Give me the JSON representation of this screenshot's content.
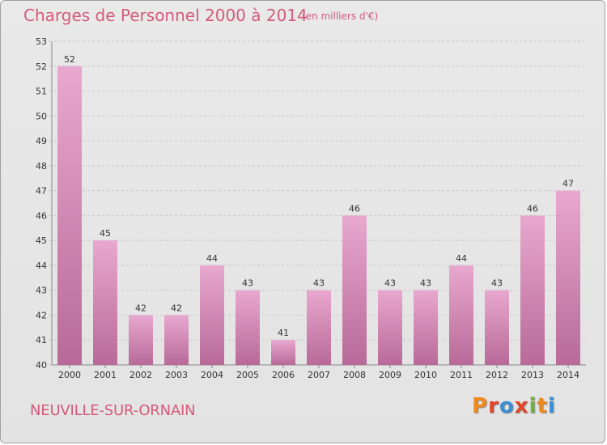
{
  "header": {
    "title": "Charges de Personnel 2000 à 2014",
    "unit": "(en milliers d'€)"
  },
  "footer": {
    "commune": "NEUVILLE-SUR-ORNAIN",
    "logo_letters": [
      "P",
      "r",
      "o",
      "x",
      "i",
      "t",
      "i"
    ],
    "logo_colors": [
      "#f08a1e",
      "#e2462b",
      "#3b8fd8",
      "#e2462b",
      "#6cb33f",
      "#f08a1e",
      "#3b8fd8"
    ]
  },
  "colors": {
    "bar_top": "#e8a8cf",
    "bar_bottom": "#b86a98",
    "grid": "#c8c8c8",
    "text": "#333333",
    "accent": "#d65a80"
  },
  "chart_data": {
    "type": "bar",
    "categories": [
      "2000",
      "2001",
      "2002",
      "2003",
      "2004",
      "2005",
      "2006",
      "2007",
      "2008",
      "2009",
      "2010",
      "2011",
      "2012",
      "2013",
      "2014"
    ],
    "values": [
      52,
      45,
      42,
      42,
      44,
      43,
      41,
      43,
      46,
      43,
      43,
      44,
      43,
      46,
      47
    ],
    "ylim": [
      40,
      53
    ],
    "yticks": [
      40,
      41,
      42,
      43,
      44,
      45,
      46,
      47,
      48,
      49,
      50,
      51,
      52,
      53
    ],
    "grid": true,
    "legend": "none",
    "title": "Charges de Personnel 2000 à 2014",
    "xlabel": "",
    "ylabel": ""
  }
}
